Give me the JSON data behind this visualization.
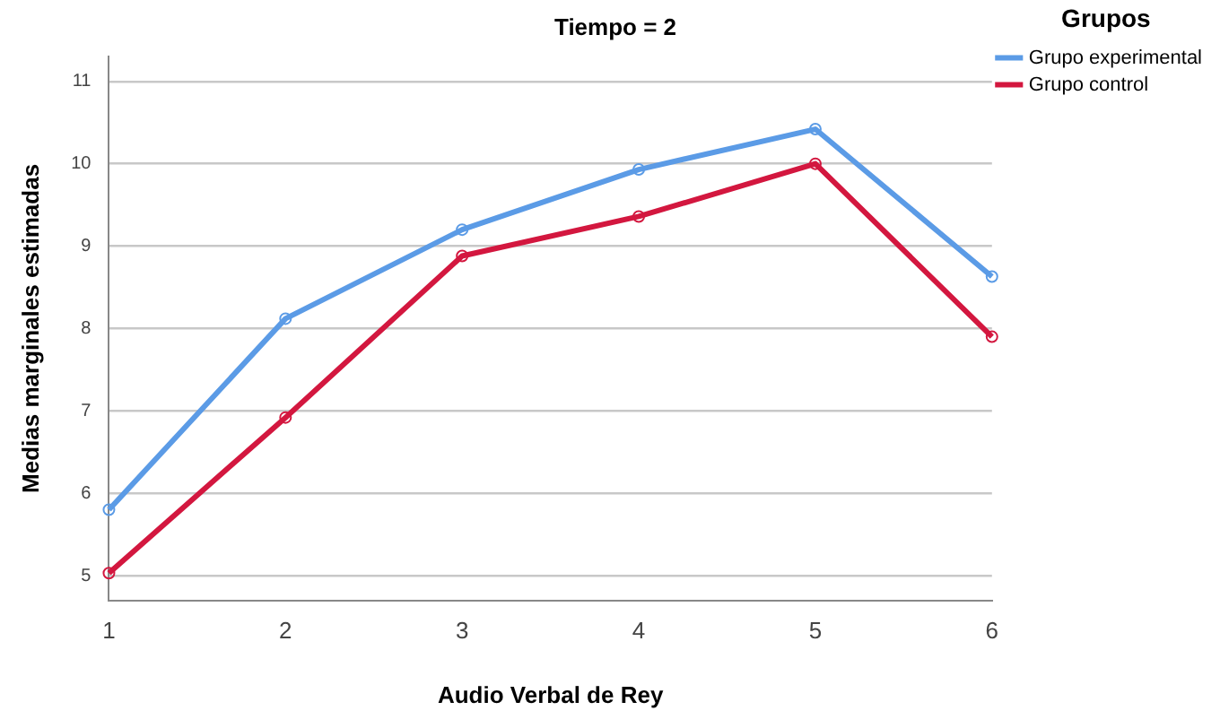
{
  "chart_data": {
    "type": "line",
    "title": "Tiempo = 2",
    "xlabel": "Audio Verbal de Rey",
    "ylabel": "Medias marginales estimadas",
    "legend_title": "Grupos",
    "categories": [
      "1",
      "2",
      "3",
      "4",
      "5",
      "6"
    ],
    "series": [
      {
        "name": "Grupo experimental",
        "color": "#5b9be6",
        "values": [
          5.8,
          8.12,
          9.2,
          9.93,
          10.42,
          8.63
        ]
      },
      {
        "name": "Grupo control",
        "color": "#d3173f",
        "values": [
          5.03,
          6.92,
          8.88,
          9.36,
          10.0,
          7.9
        ]
      }
    ],
    "ylim": [
      4.7,
      11.3
    ],
    "yticks": [
      5,
      6,
      7,
      8,
      9,
      10,
      11
    ],
    "grid": "y",
    "legend": "top right",
    "marker": "circle",
    "line_style": "solid"
  }
}
